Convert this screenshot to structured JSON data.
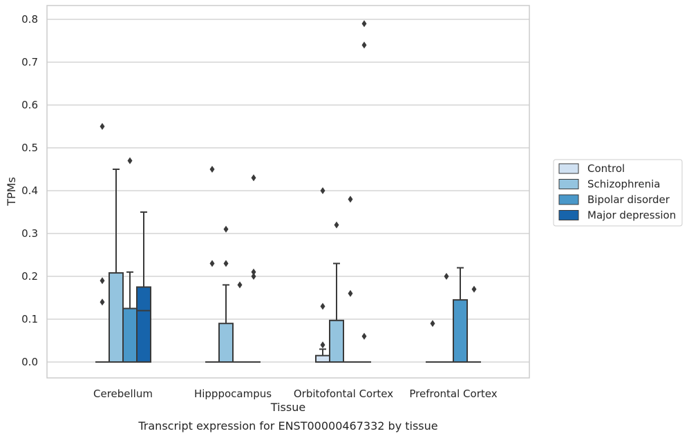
{
  "chart_data": {
    "type": "box",
    "caption": "Transcript expression for ENST00000467332 by tissue",
    "xlabel": "Tissue",
    "ylabel": "TPMs",
    "ylim": [
      -0.04,
      0.83
    ],
    "yticks": [
      0.0,
      0.1,
      0.2,
      0.3,
      0.4,
      0.5,
      0.6,
      0.7,
      0.8
    ],
    "ytick_labels": [
      "0.0",
      "0.1",
      "0.2",
      "0.3",
      "0.4",
      "0.5",
      "0.6",
      "0.7",
      "0.8"
    ],
    "grid": "horizontal",
    "legend_position": "right",
    "categories": [
      "Cerebellum",
      "Hipppocampus",
      "Orbitofontal Cortex",
      "Prefrontal Cortex"
    ],
    "series": [
      {
        "name": "Control",
        "color": "#d0e1f2",
        "boxes": [
          {
            "q1": 0,
            "median": 0,
            "q3": 0,
            "whisker_low": 0,
            "whisker_high": 0,
            "outliers": [
              0.55,
              0.19,
              0.14
            ]
          },
          {
            "q1": 0,
            "median": 0,
            "q3": 0,
            "whisker_low": 0,
            "whisker_high": 0,
            "outliers": [
              0.45,
              0.23
            ]
          },
          {
            "q1": 0,
            "median": 0,
            "q3": 0.015,
            "whisker_low": 0,
            "whisker_high": 0.03,
            "outliers": [
              0.4,
              0.13,
              0.04
            ]
          },
          {
            "q1": 0,
            "median": 0,
            "q3": 0,
            "whisker_low": 0,
            "whisker_high": 0,
            "outliers": [
              0.09
            ]
          }
        ]
      },
      {
        "name": "Schizophrenia",
        "color": "#94c4df",
        "boxes": [
          {
            "q1": 0,
            "median": 0,
            "q3": 0.208,
            "whisker_low": 0,
            "whisker_high": 0.45,
            "outliers": []
          },
          {
            "q1": 0,
            "median": 0,
            "q3": 0.09,
            "whisker_low": 0,
            "whisker_high": 0.18,
            "outliers": [
              0.31,
              0.23
            ]
          },
          {
            "q1": 0,
            "median": 0,
            "q3": 0.097,
            "whisker_low": 0,
            "whisker_high": 0.23,
            "outliers": [
              0.32
            ]
          },
          {
            "q1": 0,
            "median": 0,
            "q3": 0,
            "whisker_low": 0,
            "whisker_high": 0,
            "outliers": [
              0.2
            ]
          }
        ]
      },
      {
        "name": "Bipolar disorder",
        "color": "#4a98c9",
        "boxes": [
          {
            "q1": 0,
            "median": 0,
            "q3": 0.125,
            "whisker_low": 0,
            "whisker_high": 0.21,
            "outliers": [
              0.47
            ]
          },
          {
            "q1": 0,
            "median": 0,
            "q3": 0,
            "whisker_low": 0,
            "whisker_high": 0,
            "outliers": [
              0.18
            ]
          },
          {
            "q1": 0,
            "median": 0,
            "q3": 0,
            "whisker_low": 0,
            "whisker_high": 0,
            "outliers": [
              0.38,
              0.16
            ]
          },
          {
            "q1": 0,
            "median": 0,
            "q3": 0.145,
            "whisker_low": 0,
            "whisker_high": 0.22,
            "outliers": []
          }
        ]
      },
      {
        "name": "Major depression",
        "color": "#1764ab",
        "boxes": [
          {
            "q1": 0,
            "median": 0.12,
            "q3": 0.175,
            "whisker_low": 0,
            "whisker_high": 0.35,
            "outliers": []
          },
          {
            "q1": 0,
            "median": 0,
            "q3": 0,
            "whisker_low": 0,
            "whisker_high": 0,
            "outliers": [
              0.43,
              0.21,
              0.2
            ]
          },
          {
            "q1": 0,
            "median": 0,
            "q3": 0,
            "whisker_low": 0,
            "whisker_high": 0,
            "outliers": [
              0.79,
              0.74,
              0.06
            ]
          },
          {
            "q1": 0,
            "median": 0,
            "q3": 0,
            "whisker_low": 0,
            "whisker_high": 0,
            "outliers": [
              0.17
            ]
          }
        ]
      }
    ]
  }
}
